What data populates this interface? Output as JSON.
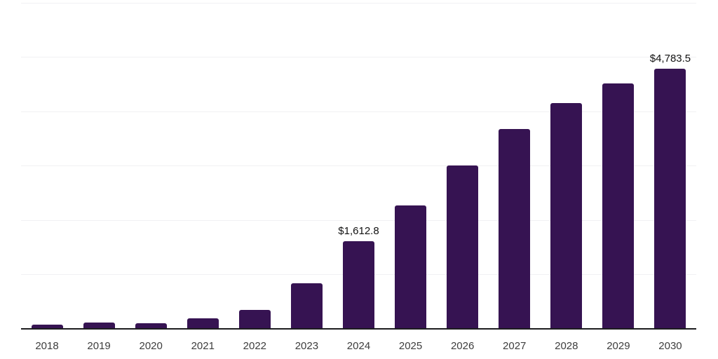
{
  "chart_data": {
    "type": "bar",
    "title": "",
    "xlabel": "",
    "ylabel": "",
    "categories": [
      "2018",
      "2019",
      "2020",
      "2021",
      "2022",
      "2023",
      "2024",
      "2025",
      "2026",
      "2027",
      "2028",
      "2029",
      "2030"
    ],
    "values": [
      80,
      110,
      105,
      190,
      345,
      840,
      1612.8,
      2270,
      3010,
      3675,
      4160,
      4520,
      4783.5
    ],
    "points": [
      {
        "year": "2018",
        "value": 80,
        "label": ""
      },
      {
        "year": "2019",
        "value": 110,
        "label": ""
      },
      {
        "year": "2020",
        "value": 105,
        "label": ""
      },
      {
        "year": "2021",
        "value": 190,
        "label": ""
      },
      {
        "year": "2022",
        "value": 345,
        "label": ""
      },
      {
        "year": "2023",
        "value": 840,
        "label": ""
      },
      {
        "year": "2024",
        "value": 1612.8,
        "label": "$1,612.8"
      },
      {
        "year": "2025",
        "value": 2270,
        "label": ""
      },
      {
        "year": "2026",
        "value": 3010,
        "label": ""
      },
      {
        "year": "2027",
        "value": 3675,
        "label": ""
      },
      {
        "year": "2028",
        "value": 4160,
        "label": ""
      },
      {
        "year": "2029",
        "value": 4520,
        "label": ""
      },
      {
        "year": "2030",
        "value": 4783.5,
        "label": "$4,783.5"
      }
    ],
    "ylim": [
      0,
      6000
    ],
    "gridline_step": 1000,
    "grid": true,
    "legend": "none",
    "currency_prefix": "$"
  },
  "colors": {
    "bar": "#361352",
    "axis": "#1d1d1f",
    "gridline": "#f1f1f3",
    "tick_label": "#3d3d3d",
    "value_label": "#121212",
    "background": "#ffffff"
  }
}
